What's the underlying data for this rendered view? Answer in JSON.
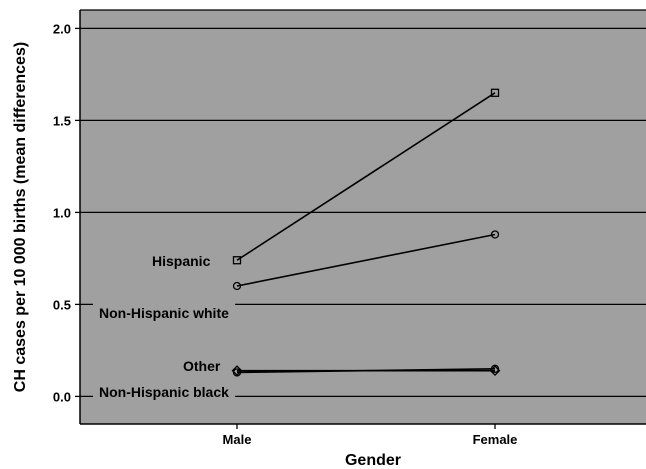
{
  "colors": {
    "plot_background": "#a0a0a0",
    "gridline": "#000000",
    "series_line": "#000000",
    "label_box": "#a0a0a0"
  },
  "chart_data": {
    "type": "line",
    "title": "",
    "xlabel": "Gender",
    "ylabel": "CH cases per 10 000 births (mean differences)",
    "categories": [
      "Male",
      "Female"
    ],
    "ylim": [
      -0.15,
      2.1
    ],
    "yticks": [
      0.0,
      0.5,
      1.0,
      1.5,
      2.0
    ],
    "ytick_labels": [
      "0.0",
      "0.5",
      "1.0",
      "1.5",
      "2.0"
    ],
    "grid": true,
    "legend": "inline labels at left end of lines",
    "series": [
      {
        "name": "Hispanic",
        "marker": "square",
        "values": [
          0.74,
          1.65
        ]
      },
      {
        "name": "Non-Hispanic white",
        "marker": "circle",
        "values": [
          0.6,
          0.88
        ]
      },
      {
        "name": "Other",
        "marker": "diamond",
        "values": [
          0.14,
          0.14
        ]
      },
      {
        "name": "Non-Hispanic black",
        "marker": "circle",
        "values": [
          0.13,
          0.15
        ]
      }
    ]
  }
}
